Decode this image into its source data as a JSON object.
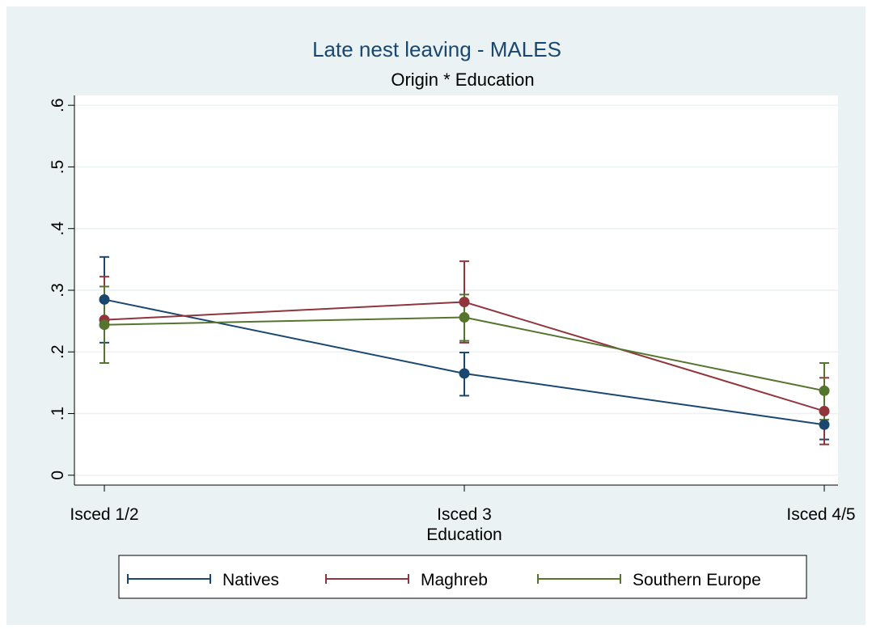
{
  "chart_data": {
    "type": "line",
    "title": "Late nest leaving - MALES",
    "subtitle": "Origin * Education",
    "x_label": "Education",
    "categories": [
      "Isced 1/2",
      "Isced 3",
      "Isced 4/5"
    ],
    "series": [
      {
        "name": "Natives",
        "color": "#1a476f",
        "values": [
          0.285,
          0.165,
          0.082
        ],
        "lower": [
          0.215,
          0.129,
          0.058
        ],
        "upper": [
          0.354,
          0.199,
          0.106
        ]
      },
      {
        "name": "Maghreb",
        "color": "#90353b",
        "values": [
          0.252,
          0.281,
          0.104
        ],
        "lower": [
          0.182,
          0.215,
          0.05
        ],
        "upper": [
          0.322,
          0.347,
          0.158
        ]
      },
      {
        "name": "Southern Europe",
        "color": "#55752f",
        "values": [
          0.244,
          0.256,
          0.137
        ],
        "lower": [
          0.182,
          0.218,
          0.09
        ],
        "upper": [
          0.306,
          0.293,
          0.182
        ]
      }
    ],
    "ylim": [
      -0.016,
      0.616
    ],
    "yticks": [
      0,
      {
        "value": 0.1,
        "label": ".1"
      },
      {
        "value": 0.2,
        "label": ".2"
      },
      {
        "value": 0.3,
        "label": ".3"
      },
      {
        "value": 0.4,
        "label": ".4"
      },
      {
        "value": 0.5,
        "label": ".5"
      },
      {
        "value": 0.6,
        "label": ".6"
      }
    ],
    "grid": true,
    "legend": "bottom"
  }
}
